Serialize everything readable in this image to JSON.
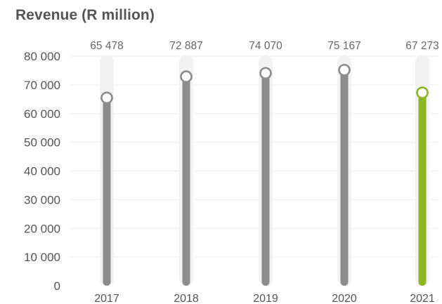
{
  "chart_data": {
    "type": "bar",
    "title": "Revenue (R million)",
    "categories": [
      "2017",
      "2018",
      "2019",
      "2020",
      "2021"
    ],
    "values": [
      65478,
      72887,
      74070,
      75167,
      67273
    ],
    "value_labels": [
      "65 478",
      "72 887",
      "74 070",
      "75 167",
      "67 273"
    ],
    "yticks": [
      0,
      10000,
      20000,
      30000,
      40000,
      50000,
      60000,
      70000,
      80000
    ],
    "ytick_labels": [
      "0",
      "10 000",
      "20 000",
      "30 000",
      "40 000",
      "50 000",
      "60 000",
      "70 000",
      "80 000"
    ],
    "ylim": [
      0,
      80000
    ],
    "grid": true,
    "xlabel": "",
    "ylabel": "",
    "highlight_category": "2021",
    "colors": {
      "bar": "#8c8c8c",
      "highlight": "#8ab81e",
      "track": "#f2f2f2",
      "text": "#555555"
    }
  }
}
